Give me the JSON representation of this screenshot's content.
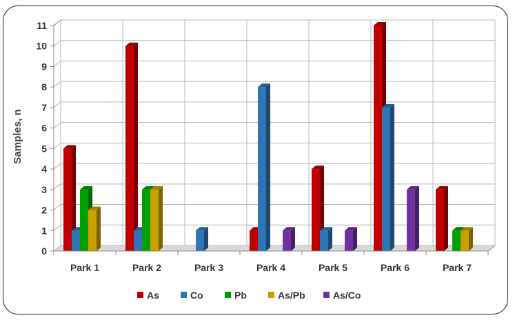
{
  "chart_data": {
    "type": "bar",
    "title": "",
    "xlabel": "",
    "ylabel": "Samples, n",
    "ylim": [
      0,
      11
    ],
    "yticks": [
      0,
      1,
      2,
      3,
      4,
      5,
      6,
      7,
      8,
      9,
      10,
      11
    ],
    "grid": true,
    "legend_position": "bottom",
    "categories": [
      "Park 1",
      "Park 2",
      "Park 3",
      "Park 4",
      "Park 5",
      "Park 6",
      "Park 7"
    ],
    "series": [
      {
        "name": "As",
        "color": "#c00000",
        "values": [
          5,
          10,
          0,
          1,
          4,
          11,
          3
        ]
      },
      {
        "name": "Co",
        "color": "#2e75b6",
        "values": [
          1,
          1,
          1,
          8,
          1,
          7,
          0
        ]
      },
      {
        "name": "Pb",
        "color": "#00a000",
        "values": [
          3,
          3,
          0,
          0,
          0,
          0,
          1
        ]
      },
      {
        "name": "As/Pb",
        "color": "#c9a000",
        "values": [
          2,
          3,
          0,
          0,
          0,
          0,
          1
        ]
      },
      {
        "name": "As/Co",
        "color": "#7030a0",
        "values": [
          0,
          0,
          0,
          1,
          1,
          3,
          0
        ]
      }
    ]
  }
}
